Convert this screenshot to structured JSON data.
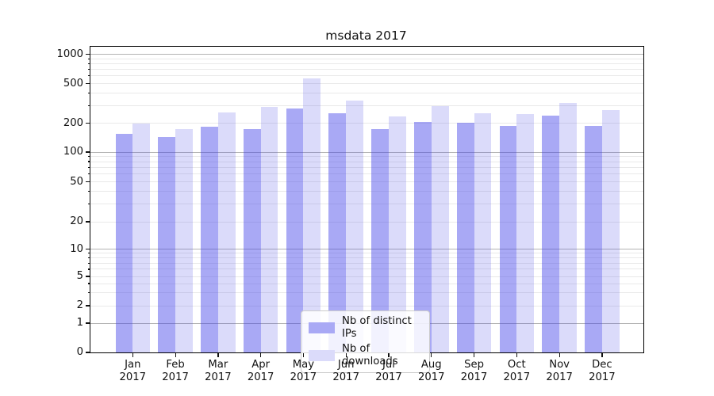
{
  "title": "msdata 2017",
  "chart_data": {
    "type": "bar",
    "title": "msdata 2017",
    "yscale": "symlog",
    "grid": true,
    "legend_position": "lower-center",
    "categories": [
      "Jan",
      "Feb",
      "Mar",
      "Apr",
      "May",
      "Jun",
      "Jul",
      "Aug",
      "Sep",
      "Oct",
      "Nov",
      "Dec"
    ],
    "x_tick_year": "2017",
    "y_ticks": [
      0,
      1,
      2,
      5,
      10,
      20,
      50,
      100,
      200,
      500,
      1000
    ],
    "ylim": [
      0,
      1000
    ],
    "series": [
      {
        "name": "Nb of distinct IPs",
        "color": "#a9a9f5",
        "values": [
          155,
          143,
          183,
          172,
          280,
          252,
          174,
          206,
          202,
          186,
          237,
          187
        ]
      },
      {
        "name": "Nb of downloads",
        "color": "#dbdbfa",
        "values": [
          200,
          174,
          256,
          289,
          560,
          336,
          233,
          294,
          252,
          249,
          322,
          273
        ]
      }
    ],
    "colors": {
      "grid_major": "#b3b3b3",
      "grid_minor": "#e9e9e9",
      "axis": "#000000",
      "text": "#111111"
    }
  }
}
